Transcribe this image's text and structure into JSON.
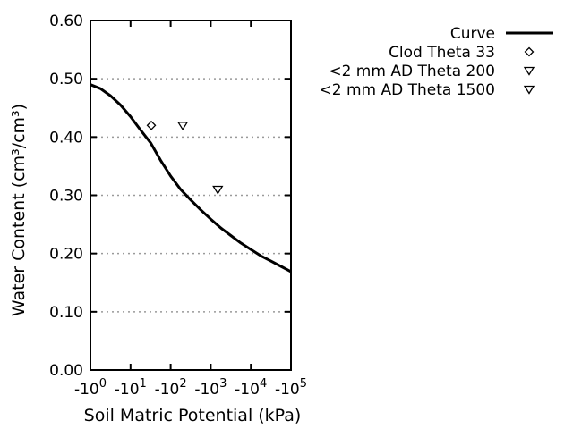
{
  "colors": {
    "foreground": "#000000",
    "grid": "#9a9a9a",
    "background": "#ffffff"
  },
  "chart_data": {
    "type": "line",
    "title": "",
    "xlabel": "Soil Matric Potential (kPa)",
    "ylabel": "Water Content (cm³/cm³)",
    "x_scale": "negative log10 of kPa, -10^0 to -10^5",
    "x_tick_base": "-10",
    "x_tick_exponents": [
      0,
      1,
      2,
      3,
      4,
      5
    ],
    "xlim_log10": [
      0,
      5
    ],
    "ylim": [
      0,
      0.6
    ],
    "y_ticks": [
      "0.00",
      "0.10",
      "0.20",
      "0.30",
      "0.40",
      "0.50",
      "0.60"
    ],
    "y_tick_values": [
      0,
      0.1,
      0.2,
      0.3,
      0.4,
      0.5,
      0.6
    ],
    "y_gridlines": [
      0.1,
      0.2,
      0.3,
      0.4,
      0.5
    ],
    "grid": "horizontal dotted gray lines only",
    "legend_position": "outside top-right, text right-aligned with symbol at right",
    "series": [
      {
        "name": "Curve",
        "kind": "line",
        "marker": "solid-line",
        "points_log10_theta": [
          [
            0.0,
            0.49
          ],
          [
            0.25,
            0.483
          ],
          [
            0.5,
            0.471
          ],
          [
            0.75,
            0.455
          ],
          [
            1.0,
            0.435
          ],
          [
            1.25,
            0.412
          ],
          [
            1.5,
            0.39
          ],
          [
            1.75,
            0.36
          ],
          [
            2.0,
            0.333
          ],
          [
            2.25,
            0.31
          ],
          [
            2.5,
            0.292
          ],
          [
            2.75,
            0.275
          ],
          [
            3.0,
            0.259
          ],
          [
            3.25,
            0.244
          ],
          [
            3.5,
            0.231
          ],
          [
            3.75,
            0.218
          ],
          [
            4.0,
            0.207
          ],
          [
            4.25,
            0.196
          ],
          [
            4.5,
            0.187
          ],
          [
            4.75,
            0.178
          ],
          [
            5.0,
            0.169
          ]
        ]
      },
      {
        "name": "Clod Theta 33",
        "kind": "scatter",
        "marker": "open-diamond",
        "points_kPa_theta": [
          [
            -33,
            0.42
          ]
        ]
      },
      {
        "name": "<2 mm AD Theta 200",
        "kind": "scatter",
        "marker": "open-triangle-down",
        "points_kPa_theta": [
          [
            -200,
            0.42
          ]
        ]
      },
      {
        "name": "<2 mm AD Theta 1500",
        "kind": "scatter",
        "marker": "open-triangle-down",
        "points_kPa_theta": [
          [
            -1500,
            0.31
          ]
        ]
      }
    ]
  }
}
